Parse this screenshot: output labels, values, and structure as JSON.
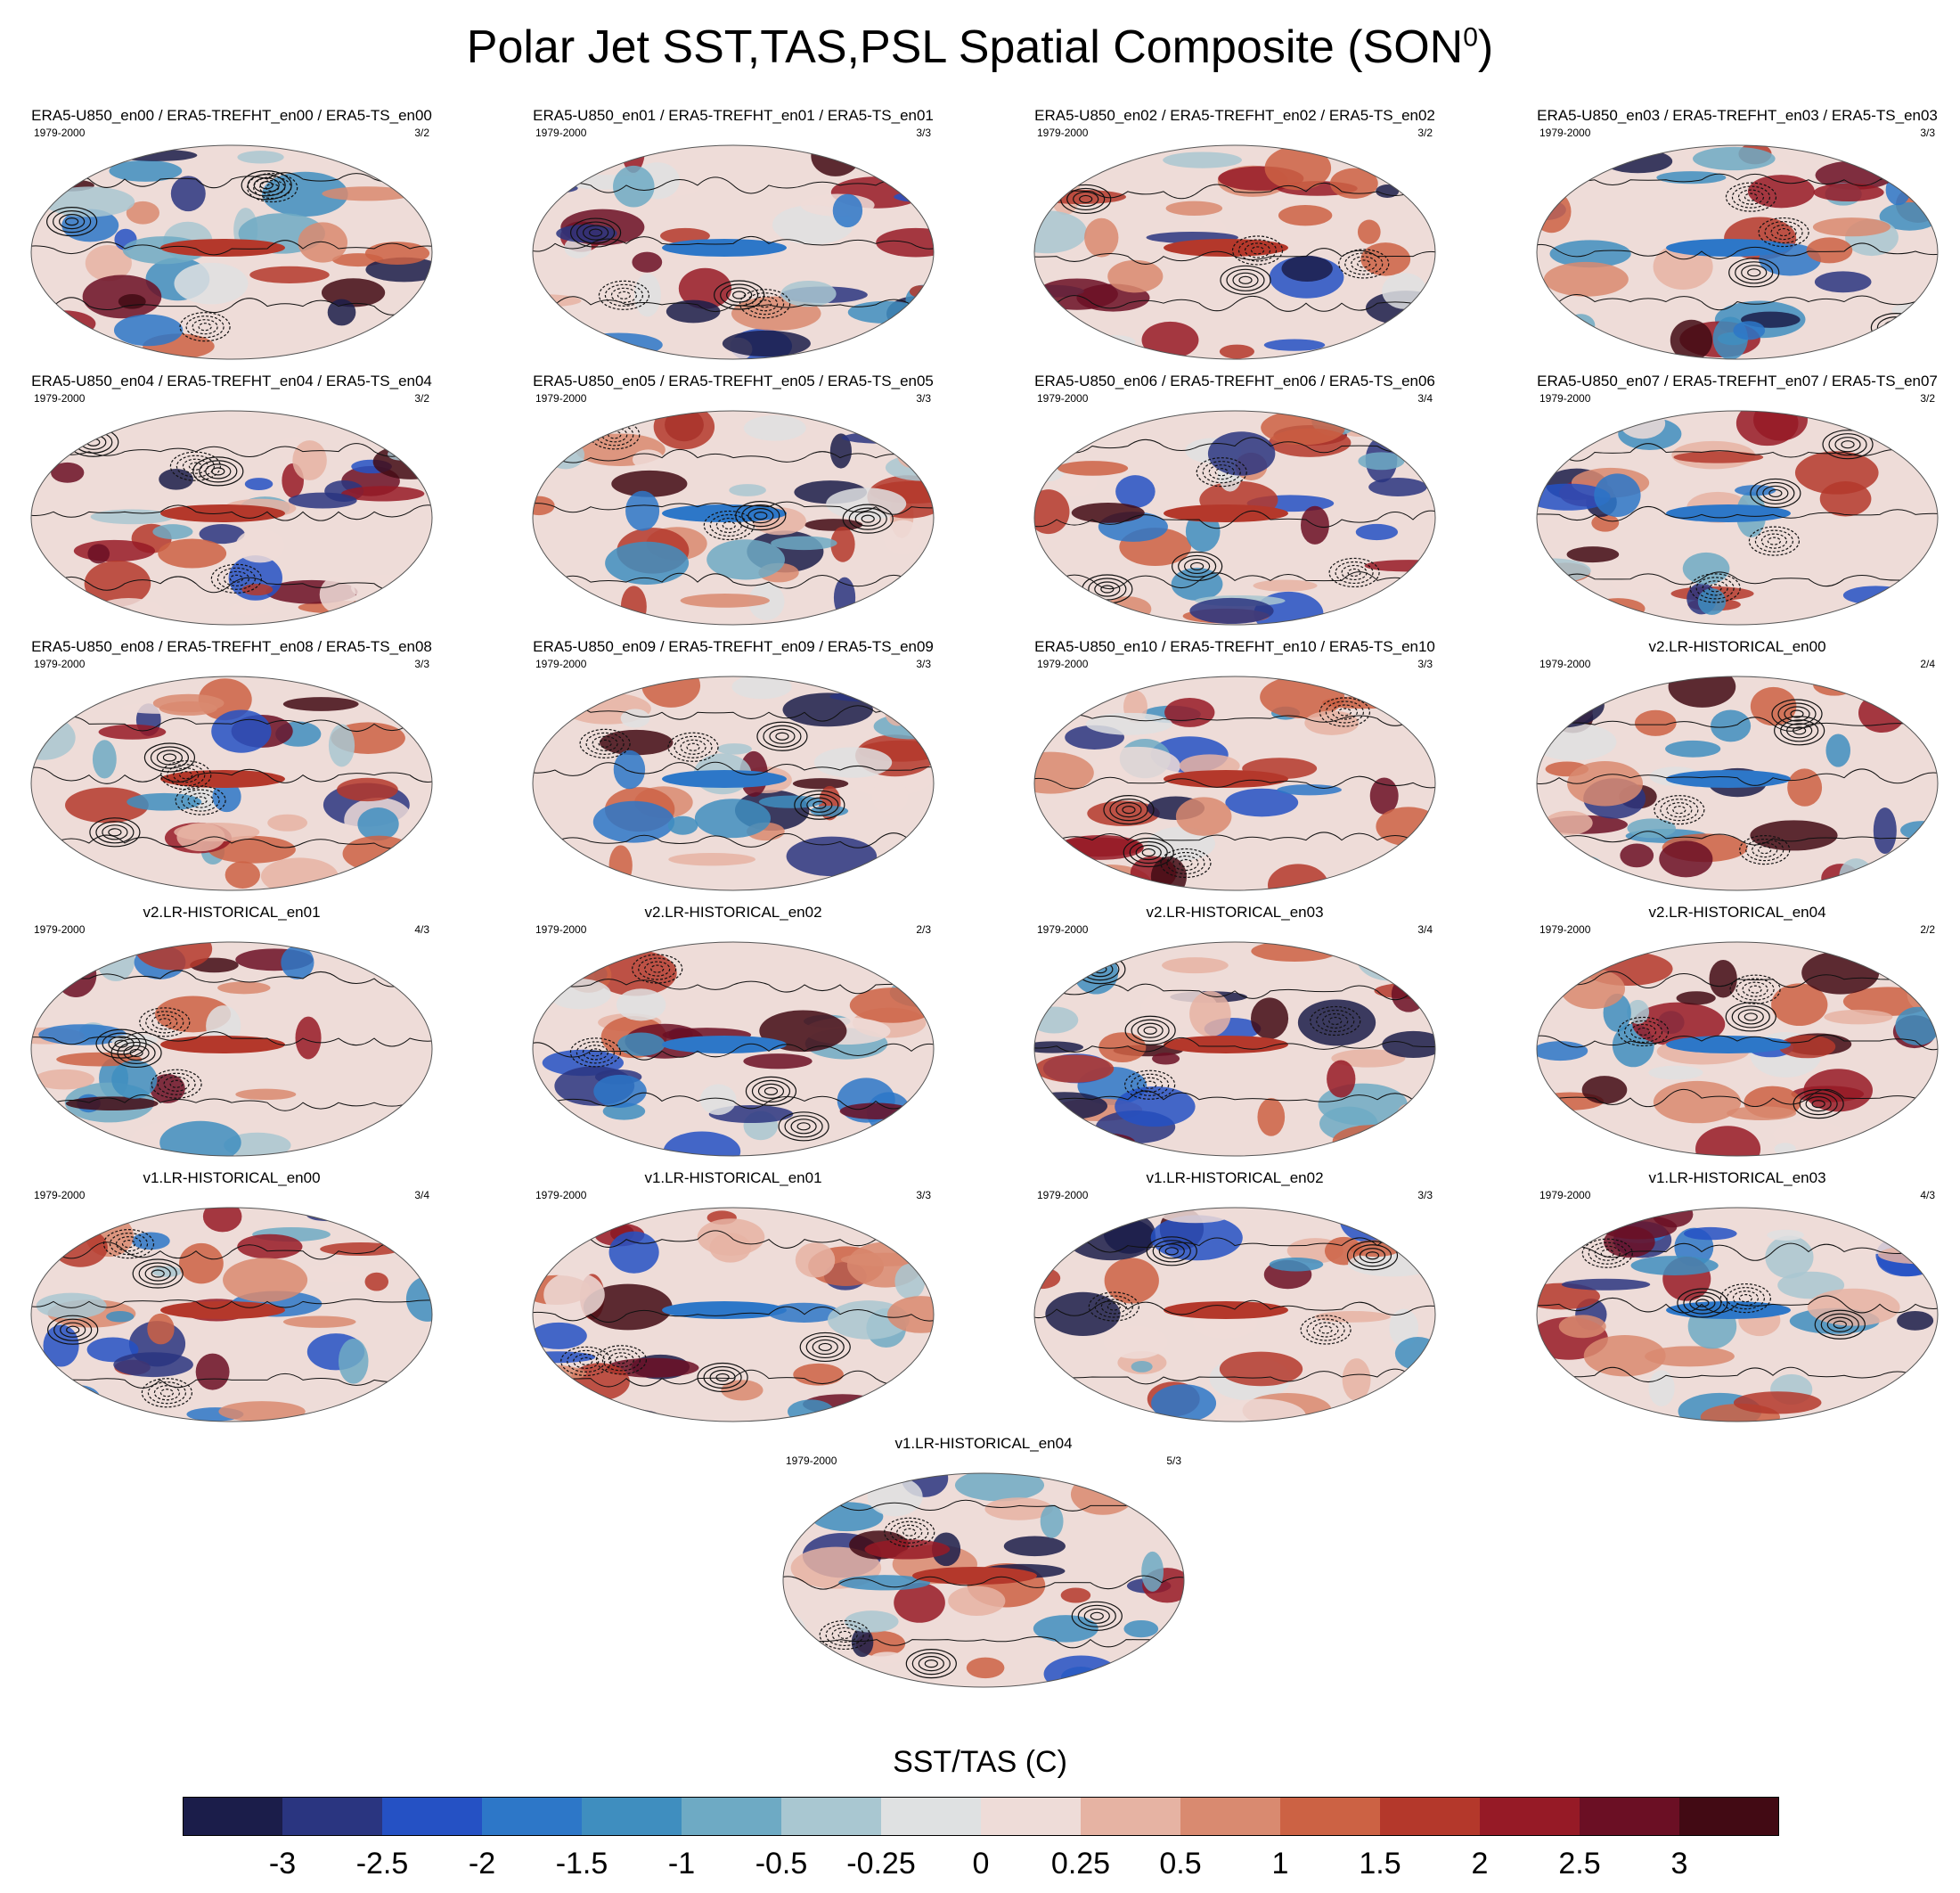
{
  "title": {
    "main": "Polar Jet SST,TAS,PSL Spatial Composite (SON",
    "sup": "0",
    "close": ")"
  },
  "panels": [
    {
      "title": "ERA5-U850_en00 / ERA5-TREFHT_en00 / ERA5-TS_en00",
      "years": "1979-2000",
      "count": "3/2"
    },
    {
      "title": "ERA5-U850_en01 / ERA5-TREFHT_en01 / ERA5-TS_en01",
      "years": "1979-2000",
      "count": "3/3"
    },
    {
      "title": "ERA5-U850_en02 / ERA5-TREFHT_en02 / ERA5-TS_en02",
      "years": "1979-2000",
      "count": "3/2"
    },
    {
      "title": "ERA5-U850_en03 / ERA5-TREFHT_en03 / ERA5-TS_en03",
      "years": "1979-2000",
      "count": "3/3"
    },
    {
      "title": "ERA5-U850_en04 / ERA5-TREFHT_en04 / ERA5-TS_en04",
      "years": "1979-2000",
      "count": "3/2"
    },
    {
      "title": "ERA5-U850_en05 / ERA5-TREFHT_en05 / ERA5-TS_en05",
      "years": "1979-2000",
      "count": "3/3"
    },
    {
      "title": "ERA5-U850_en06 / ERA5-TREFHT_en06 / ERA5-TS_en06",
      "years": "1979-2000",
      "count": "3/4"
    },
    {
      "title": "ERA5-U850_en07 / ERA5-TREFHT_en07 / ERA5-TS_en07",
      "years": "1979-2000",
      "count": "3/2"
    },
    {
      "title": "ERA5-U850_en08 / ERA5-TREFHT_en08 / ERA5-TS_en08",
      "years": "1979-2000",
      "count": "3/3"
    },
    {
      "title": "ERA5-U850_en09 / ERA5-TREFHT_en09 / ERA5-TS_en09",
      "years": "1979-2000",
      "count": "3/3"
    },
    {
      "title": "ERA5-U850_en10 / ERA5-TREFHT_en10 / ERA5-TS_en10",
      "years": "1979-2000",
      "count": "3/3"
    },
    {
      "title": "v2.LR-HISTORICAL_en00",
      "years": "1979-2000",
      "count": "2/4"
    },
    {
      "title": "v2.LR-HISTORICAL_en01",
      "years": "1979-2000",
      "count": "4/3"
    },
    {
      "title": "v2.LR-HISTORICAL_en02",
      "years": "1979-2000",
      "count": "2/3"
    },
    {
      "title": "v2.LR-HISTORICAL_en03",
      "years": "1979-2000",
      "count": "3/4"
    },
    {
      "title": "v2.LR-HISTORICAL_en04",
      "years": "1979-2000",
      "count": "2/2"
    },
    {
      "title": "v1.LR-HISTORICAL_en00",
      "years": "1979-2000",
      "count": "3/4"
    },
    {
      "title": "v1.LR-HISTORICAL_en01",
      "years": "1979-2000",
      "count": "3/3"
    },
    {
      "title": "v1.LR-HISTORICAL_en02",
      "years": "1979-2000",
      "count": "3/3"
    },
    {
      "title": "v1.LR-HISTORICAL_en03",
      "years": "1979-2000",
      "count": "4/3"
    },
    {
      "title": "v1.LR-HISTORICAL_en04",
      "years": "1979-2000",
      "count": "5/3"
    }
  ],
  "colorbar": {
    "title": "SST/TAS (C)",
    "labels": [
      "-3",
      "-2.5",
      "-2",
      "-1.5",
      "-1",
      "-0.5",
      "-0.25",
      "0",
      "0.25",
      "0.5",
      "1",
      "1.5",
      "2",
      "2.5",
      "3"
    ],
    "colors": [
      "#1b1d4a",
      "#2a3580",
      "#2551c4",
      "#2d77c8",
      "#3f8ebf",
      "#6eaac4",
      "#a9c7d1",
      "#dfe1e2",
      "#eedcd8",
      "#e6b3a3",
      "#d98a70",
      "#cc6244",
      "#b4382b",
      "#961a26",
      "#6b0f24",
      "#420a14"
    ]
  }
}
